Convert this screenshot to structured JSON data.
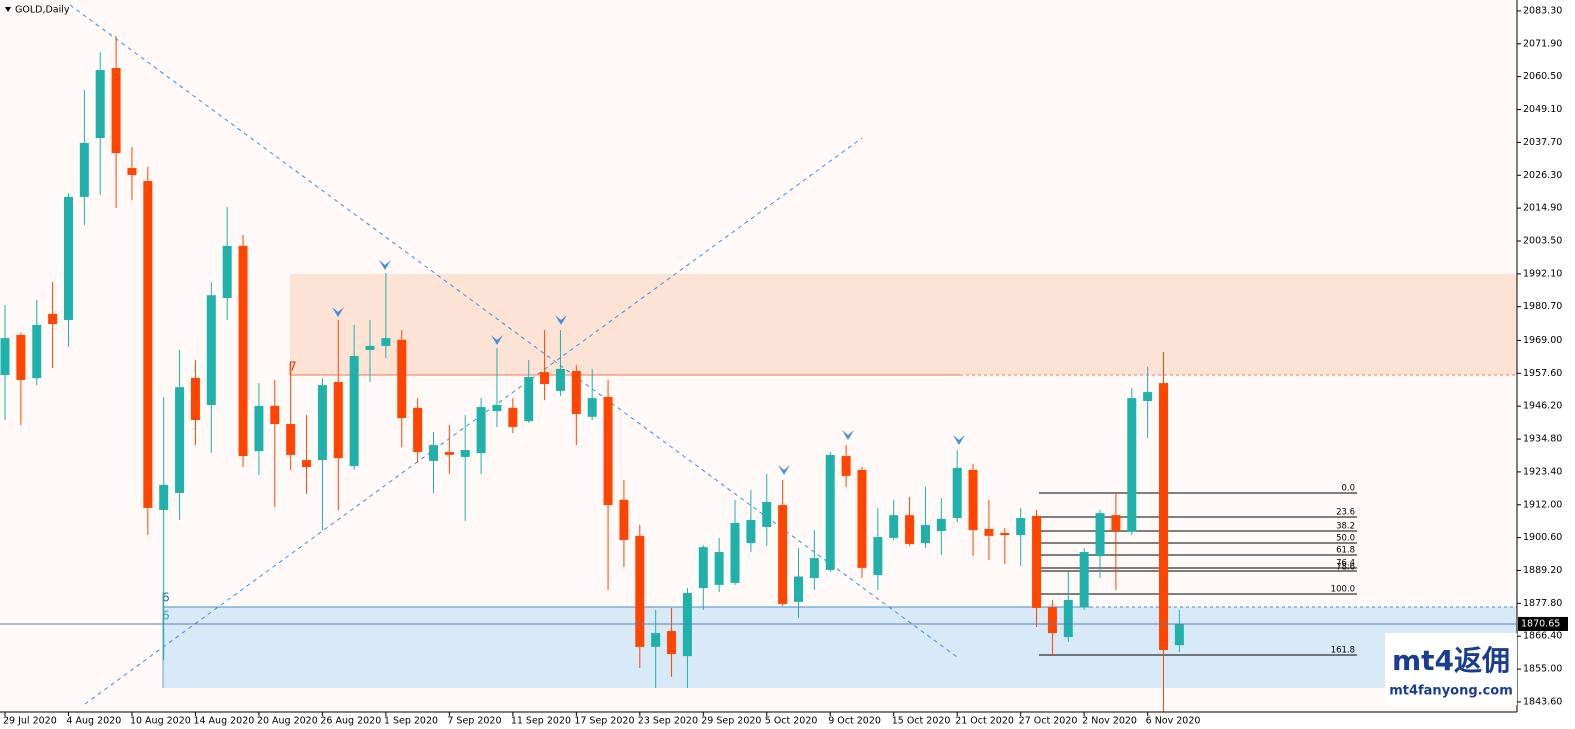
{
  "chart_data": {
    "type": "candlestick",
    "title": "GOLD,Daily",
    "categories": [
      "29 Jul 2020",
      null,
      null,
      null,
      "4 Aug 2020",
      null,
      null,
      null,
      "10 Aug 2020",
      null,
      null,
      null,
      "14 Aug 2020",
      null,
      null,
      null,
      "20 Aug 2020",
      null,
      null,
      null,
      "26 Aug 2020",
      null,
      null,
      null,
      "1 Sep 2020",
      null,
      null,
      null,
      "7 Sep 2020",
      null,
      null,
      null,
      "11 Sep 2020",
      null,
      null,
      null,
      "17 Sep 2020",
      null,
      null,
      null,
      "23 Sep 2020",
      null,
      null,
      null,
      "29 Sep 2020",
      null,
      null,
      null,
      "5 Oct 2020",
      null,
      null,
      null,
      "9 Oct 2020",
      null,
      null,
      null,
      "15 Oct 2020",
      null,
      null,
      null,
      "21 Oct 2020",
      null,
      null,
      null,
      "27 Oct 2020",
      null,
      null,
      null,
      "2 Nov 2020",
      null,
      null,
      null,
      "6 Nov 2020",
      null,
      null
    ],
    "open": [
      1957.0,
      1970.9,
      1955.9,
      1978.2,
      1976.1,
      2018.8,
      2039.2,
      2063.5,
      2028.8,
      2024.3,
      1910.2,
      1916.1,
      1956.0,
      1946.6,
      1983.7,
      2001.8,
      1930.6,
      1946.3,
      1940.0,
      1927.5,
      1927.5,
      1954.6,
      1925.4,
      1965.7,
      1967.1,
      1969.2,
      1945.6,
      1927.2,
      1930.3,
      1928.6,
      1929.9,
      1944.5,
      1945.6,
      1941.0,
      1958.0,
      1951.5,
      1958.4,
      1942.5,
      1949.4,
      1913.7,
      1901.2,
      1862.7,
      1868.2,
      1859.5,
      1883.1,
      1884.2,
      1884.9,
      1898.7,
      1904.3,
      1911.9,
      1878.3,
      1886.6,
      1889.4,
      1928.9,
      1924.1,
      1887.6,
      1900.5,
      1908.4,
      1898.7,
      1902.9,
      1907.4,
      1924.1,
      1903.6,
      1902.2,
      1901.5,
      1908.1,
      1876.5,
      1866.1,
      1876.5,
      1894.2,
      1908.4,
      1902.6,
      1948.0,
      1954.2,
      1863.3
    ],
    "high": [
      1981.3,
      1971.6,
      1983.0,
      1989.3,
      2020.1,
      2055.9,
      2069.1,
      2074.6,
      2036.1,
      2029.2,
      1949.4,
      1965.7,
      1962.2,
      1989.3,
      2015.3,
      2005.6,
      1954.2,
      1955.3,
      1961.5,
      1943.1,
      1956.0,
      1976.1,
      1974.4,
      1976.1,
      1992.4,
      1972.6,
      1949.0,
      1937.2,
      1939.7,
      1943.1,
      1949.0,
      1966.4,
      1949.0,
      1962.2,
      1972.6,
      1972.6,
      1960.5,
      1959.1,
      1955.3,
      1920.6,
      1905.0,
      1875.5,
      1876.2,
      1883.1,
      1898.0,
      1900.5,
      1913.7,
      1917.1,
      1922.7,
      1920.6,
      1897.0,
      1903.2,
      1930.3,
      1932.7,
      1925.1,
      1910.9,
      1913.7,
      1914.7,
      1918.2,
      1914.3,
      1931.0,
      1926.1,
      1913.7,
      1903.9,
      1910.9,
      1910.2,
      1879.0,
      1888.7,
      1897.0,
      1910.2,
      1916.1,
      1952.5,
      1959.8,
      1965.0,
      1875.5
    ],
    "low": [
      1941.4,
      1939.7,
      1953.5,
      1959.4,
      1966.7,
      2009.0,
      2019.5,
      2015.0,
      2017.7,
      1901.5,
      1858.1,
      1906.7,
      1932.7,
      1930.0,
      1976.1,
      1925.1,
      1922.3,
      1911.2,
      1924.1,
      1915.8,
      1903.2,
      1910.2,
      1924.1,
      1954.6,
      1962.9,
      1932.0,
      1926.5,
      1916.1,
      1922.7,
      1906.4,
      1922.7,
      1939.0,
      1936.9,
      1940.4,
      1948.3,
      1949.7,
      1932.7,
      1941.4,
      1882.4,
      1890.4,
      1855.4,
      1848.4,
      1852.3,
      1848.4,
      1875.5,
      1881.7,
      1884.2,
      1895.6,
      1897.7,
      1876.9,
      1872.7,
      1882.4,
      1888.7,
      1918.2,
      1886.6,
      1882.4,
      1899.8,
      1897.7,
      1897.0,
      1894.6,
      1906.0,
      1894.2,
      1892.8,
      1891.4,
      1890.7,
      1869.6,
      1859.5,
      1864.4,
      1875.5,
      1886.6,
      1882.4,
      1901.5,
      1935.2,
      1840.1,
      1860.9
    ],
    "close": [
      1969.8,
      1955.3,
      1974.4,
      1974.7,
      2018.8,
      2037.5,
      2062.8,
      2034.0,
      2026.4,
      1910.9,
      1918.9,
      1952.8,
      1941.4,
      1984.7,
      2001.8,
      1928.9,
      1946.3,
      1940.0,
      1929.3,
      1925.1,
      1953.5,
      1928.2,
      1963.6,
      1967.1,
      1969.8,
      1942.1,
      1930.3,
      1932.7,
      1929.3,
      1931.0,
      1945.9,
      1946.6,
      1939.0,
      1956.3,
      1953.9,
      1959.1,
      1943.5,
      1949.0,
      1911.9,
      1899.8,
      1862.7,
      1867.5,
      1860.2,
      1881.4,
      1897.3,
      1895.6,
      1905.7,
      1906.7,
      1913.0,
      1877.6,
      1887.1,
      1893.5,
      1929.3,
      1922.0,
      1890.1,
      1900.8,
      1908.4,
      1898.4,
      1905.0,
      1907.1,
      1924.8,
      1903.2,
      1901.2,
      1901.5,
      1907.4,
      1876.2,
      1867.5,
      1879.0,
      1895.6,
      1909.1,
      1902.9,
      1949.0,
      1951.1,
      1861.6,
      1870.65
    ],
    "up_color": "#20b2aa",
    "down_color": "#ff4500",
    "ylim": [
      1839.9,
      2087.1
    ],
    "yticks": [
      {
        "value": 2083.3,
        "label": "2083.30"
      },
      {
        "value": 2071.9,
        "label": "2071.90"
      },
      {
        "value": 2060.5,
        "label": "2060.50"
      },
      {
        "value": 2049.1,
        "label": "2049.10"
      },
      {
        "value": 2037.7,
        "label": "2037.70"
      },
      {
        "value": 2026.3,
        "label": "2026.30"
      },
      {
        "value": 2014.9,
        "label": "2014.90"
      },
      {
        "value": 2003.5,
        "label": "2003.50"
      },
      {
        "value": 1992.1,
        "label": "1992.10"
      },
      {
        "value": 1980.7,
        "label": "1980.70"
      },
      {
        "value": 1969.0,
        "label": "1969.00"
      },
      {
        "value": 1957.6,
        "label": "1957.60"
      },
      {
        "value": 1946.2,
        "label": "1946.20"
      },
      {
        "value": 1934.8,
        "label": "1934.80"
      },
      {
        "value": 1923.4,
        "label": "1923.40"
      },
      {
        "value": 1912.0,
        "label": "1912.00"
      },
      {
        "value": 1900.6,
        "label": "1900.60"
      },
      {
        "value": 1889.2,
        "label": "1889.20"
      },
      {
        "value": 1877.8,
        "label": "1877.80"
      },
      {
        "value": 1866.4,
        "label": "1866.40"
      },
      {
        "value": 1855.0,
        "label": "1855.00"
      },
      {
        "value": 1843.6,
        "label": "1843.60"
      }
    ],
    "last_price": 1870.65,
    "grid": false,
    "annotations": {
      "zone_labels": [
        "7",
        "6",
        "6"
      ],
      "fib_levels": [
        "0.0",
        "23.6",
        "38.2",
        "50.0",
        "61.8",
        "76.4",
        "78.6",
        "100.0",
        "161.8"
      ]
    },
    "watermark": {
      "brand": "mt4返佣",
      "site": "mt4fanyong.com"
    }
  }
}
